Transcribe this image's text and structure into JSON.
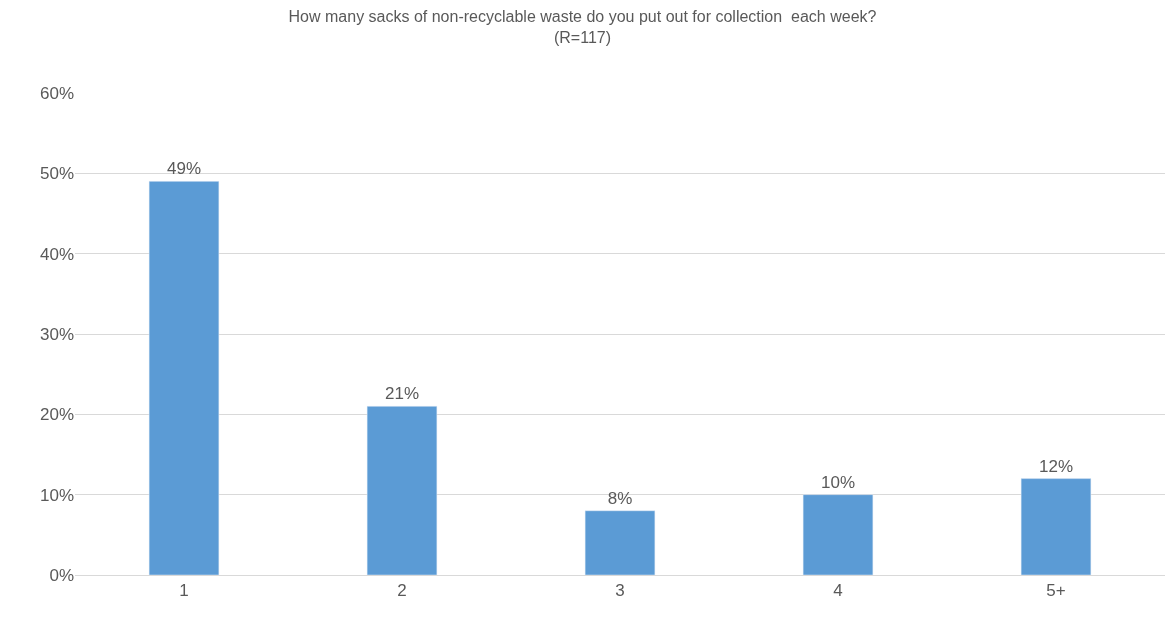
{
  "chart_data": {
    "type": "bar",
    "title": "How many sacks of non-recyclable waste do you put out for collection  each week?",
    "subtitle": "(R=117)",
    "categories": [
      "1",
      "2",
      "3",
      "4",
      "5+"
    ],
    "values": [
      49,
      21,
      8,
      10,
      12
    ],
    "value_labels": [
      "49%",
      "21%",
      "8%",
      "10%",
      "12%"
    ],
    "color": "#5b9bd5",
    "ylim": [
      0,
      60
    ],
    "yticks": [
      {
        "value": 0,
        "label": "0%"
      },
      {
        "value": 10,
        "label": "10%"
      },
      {
        "value": 20,
        "label": "20%"
      },
      {
        "value": 30,
        "label": "30%"
      },
      {
        "value": 40,
        "label": "40%"
      },
      {
        "value": 50,
        "label": "50%"
      },
      {
        "value": 60,
        "label": "60%"
      }
    ],
    "grid": "y"
  }
}
